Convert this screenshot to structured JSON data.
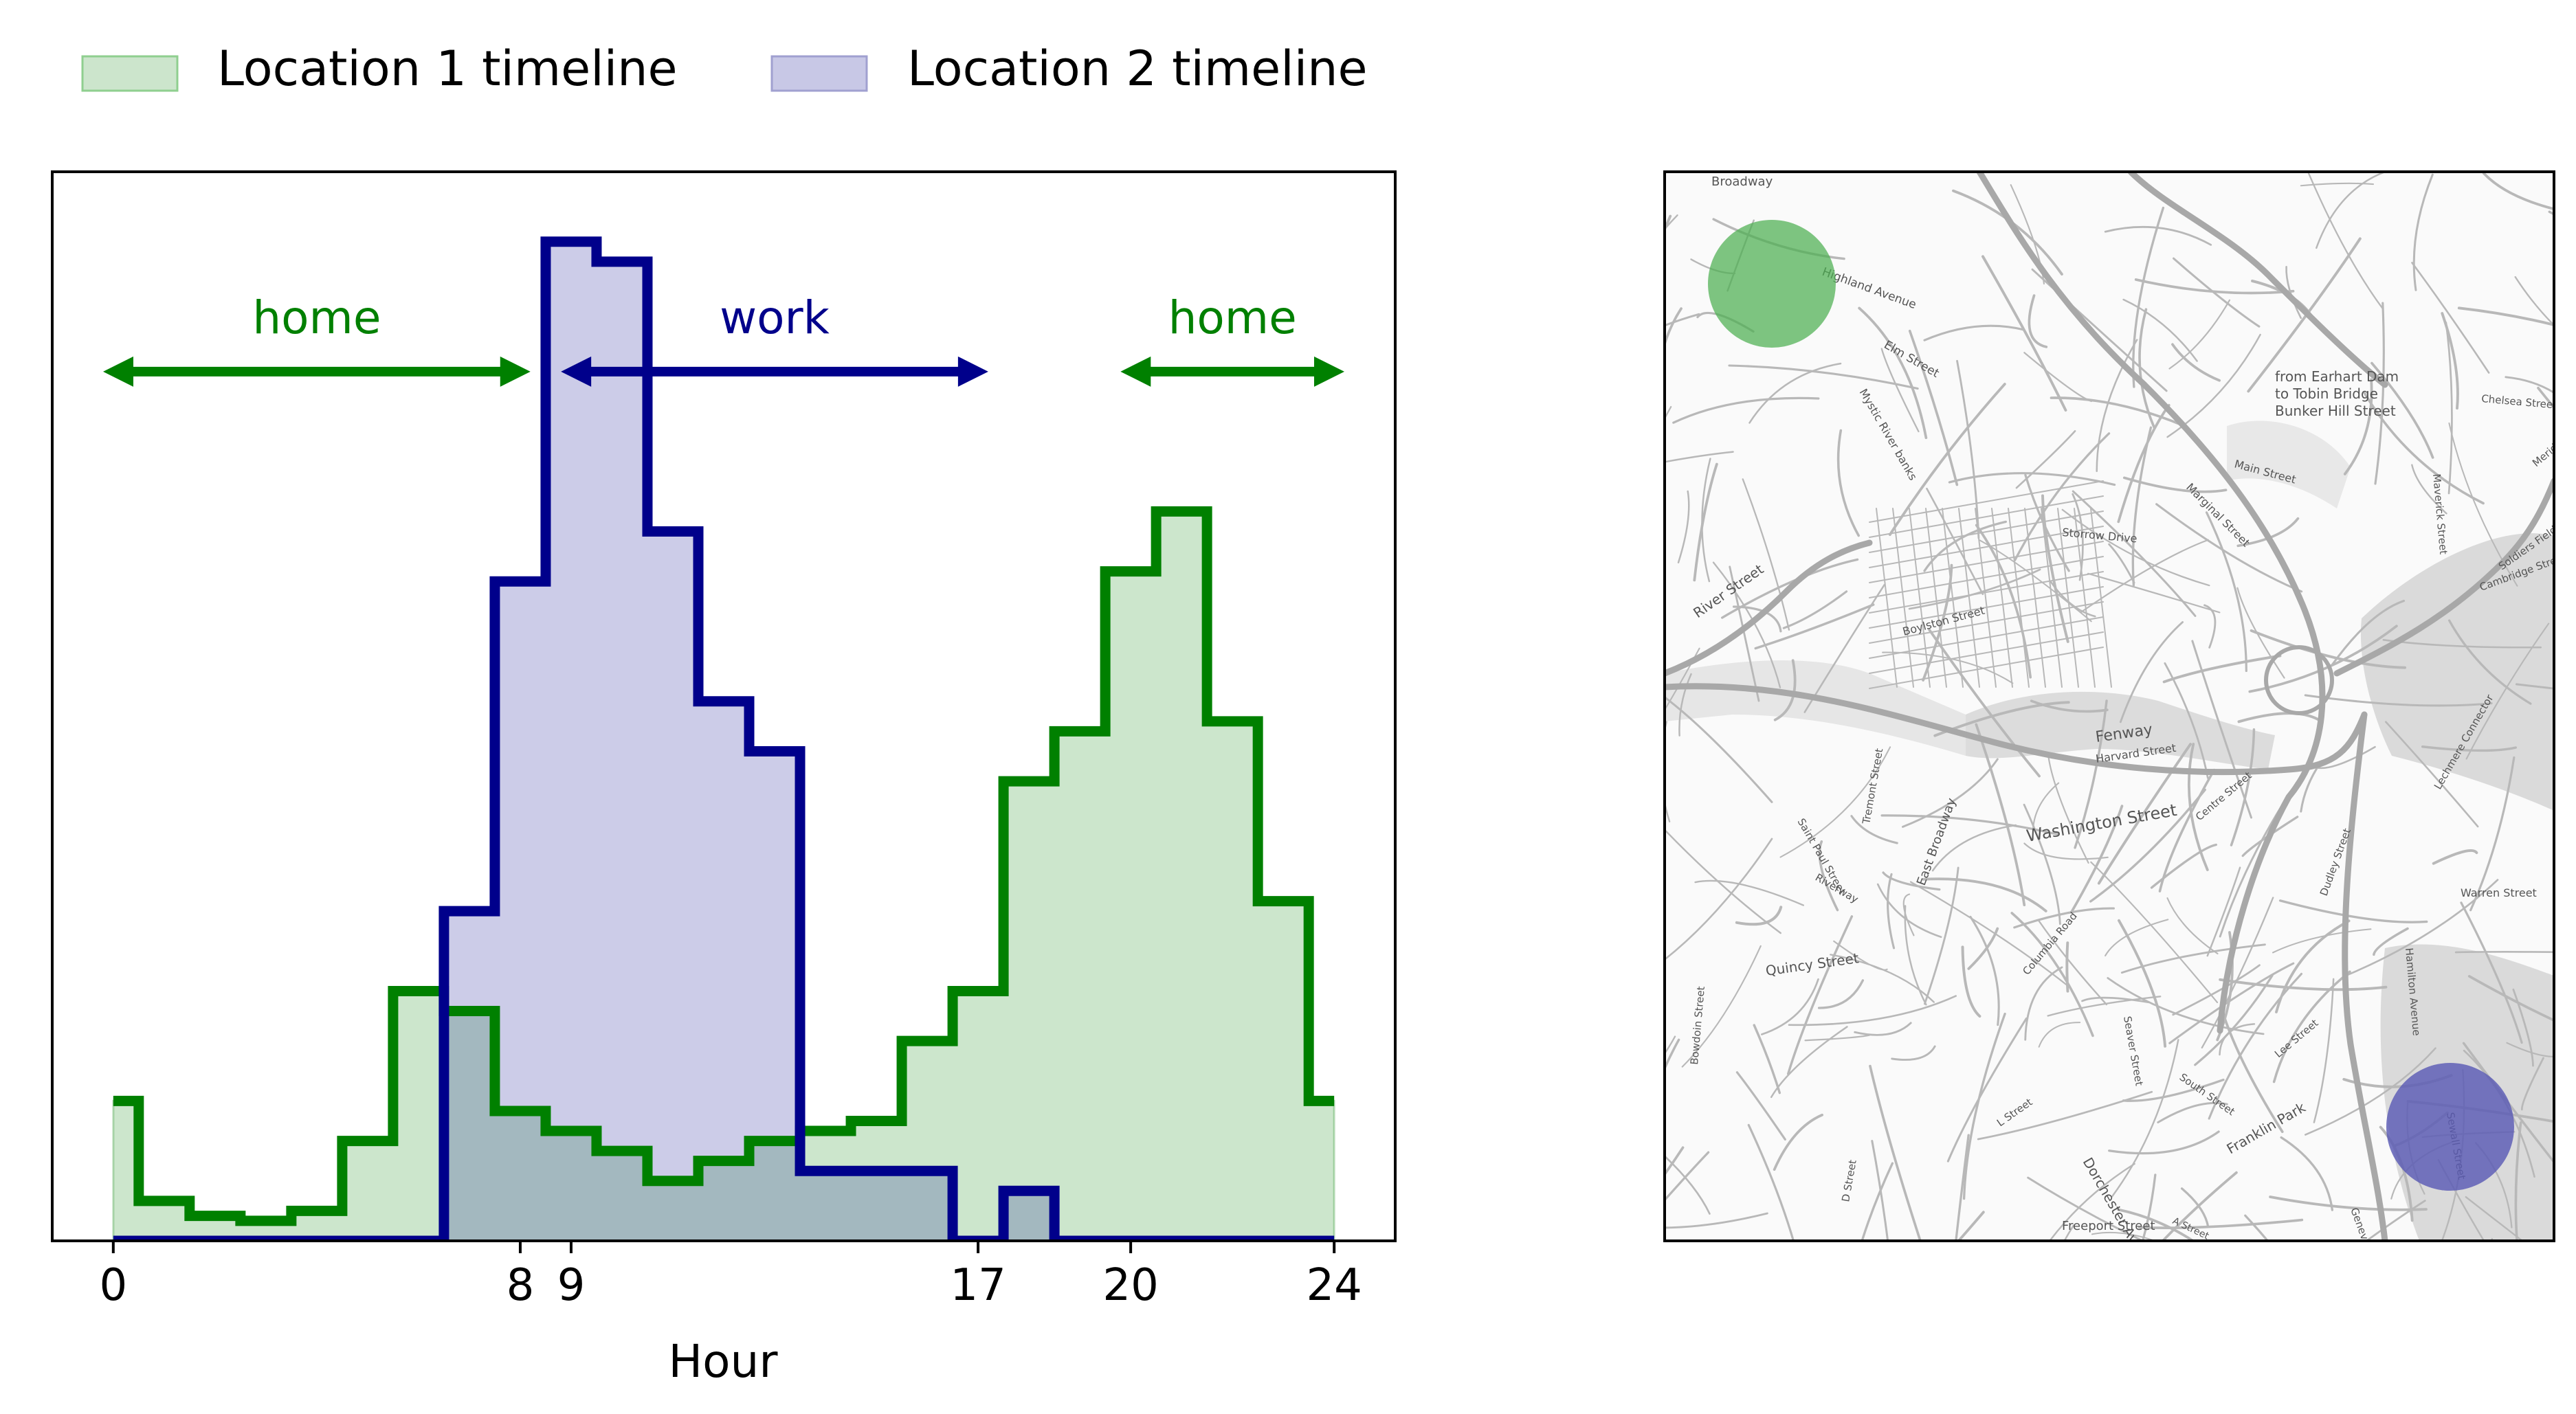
{
  "chart_data": [
    {
      "type": "area",
      "step": "mid",
      "xlabel": "Hour",
      "ylabel": "",
      "title": "",
      "xlim": [
        -1.2,
        25.2
      ],
      "ylim": [
        0,
        1.07
      ],
      "xticks": [
        0,
        8,
        9,
        17,
        20,
        24
      ],
      "xtick_labels": [
        "0",
        "8",
        "9",
        "17",
        "20",
        "24"
      ],
      "yticks": [],
      "grid": false,
      "legend_position": "top-left, above plot",
      "x": [
        0,
        1,
        2,
        3,
        4,
        5,
        6,
        7,
        8,
        9,
        10,
        11,
        12,
        13,
        14,
        15,
        16,
        17,
        18,
        19,
        20,
        21,
        22,
        23,
        24
      ],
      "series": [
        {
          "name": "Location 1 timeline",
          "color": "#008000",
          "fill": "#cce5cc",
          "values": [
            0.14,
            0.04,
            0.025,
            0.02,
            0.03,
            0.1,
            0.25,
            0.23,
            0.13,
            0.11,
            0.09,
            0.06,
            0.08,
            0.1,
            0.11,
            0.12,
            0.2,
            0.25,
            0.46,
            0.51,
            0.67,
            0.73,
            0.52,
            0.34,
            0.14
          ]
        },
        {
          "name": "Location 2 timeline",
          "color": "#00008b",
          "fill": "#c8c8e6",
          "values": [
            0,
            0,
            0,
            0,
            0,
            0,
            0,
            0.33,
            0.66,
            1.0,
            0.98,
            0.71,
            0.54,
            0.49,
            0.07,
            0.07,
            0.07,
            0,
            0.05,
            0,
            0,
            0,
            0,
            0,
            0
          ]
        }
      ],
      "annotations": [
        {
          "text": "home",
          "from": -0.2,
          "to": 8.2,
          "y": 0.87,
          "color": "#008000"
        },
        {
          "text": "work",
          "from": 8.8,
          "to": 17.2,
          "y": 0.87,
          "color": "#00008b"
        },
        {
          "text": "home",
          "from": 19.8,
          "to": 24.2,
          "y": 0.87,
          "color": "#008000"
        }
      ]
    },
    {
      "type": "map",
      "title": "",
      "markers": [
        {
          "series": "Location 1 timeline",
          "color": "#4caf50"
        },
        {
          "series": "Location 2 timeline",
          "color": "#5a5ab4"
        }
      ],
      "street_labels": [
        "Broadway",
        "Highland Avenue",
        "Elm Street",
        "Mystic River banks",
        "from Earhart Dam",
        "to Tobin Bridge",
        "Bunker Hill Street",
        "Main Street",
        "Marginal Street",
        "Chelsea Street",
        "Meridian Street",
        "Maverick Street",
        "Soldiers Field Road",
        "Cambridge Street",
        "River Street",
        "Storrow Drive",
        "Boylston Street",
        "Fenway",
        "Harvard Street",
        "Washington Street",
        "Saint Paul Street",
        "Riverway",
        "Tremont Street",
        "East Broadway",
        "Centre Street",
        "Warren Street",
        "Quincy Street",
        "Columbia Road",
        "Seaver Street",
        "South Street",
        "Franklin Park",
        "Dorchester Avenue",
        "Freeport Street",
        "Lee Street",
        "Sewall Street",
        "Geneva Avenue",
        "Bowdoin Street",
        "D Street",
        "L Street",
        "A Street",
        "Dudley Street",
        "Hamilton Avenue",
        "Lechmere Connector"
      ]
    }
  ]
}
